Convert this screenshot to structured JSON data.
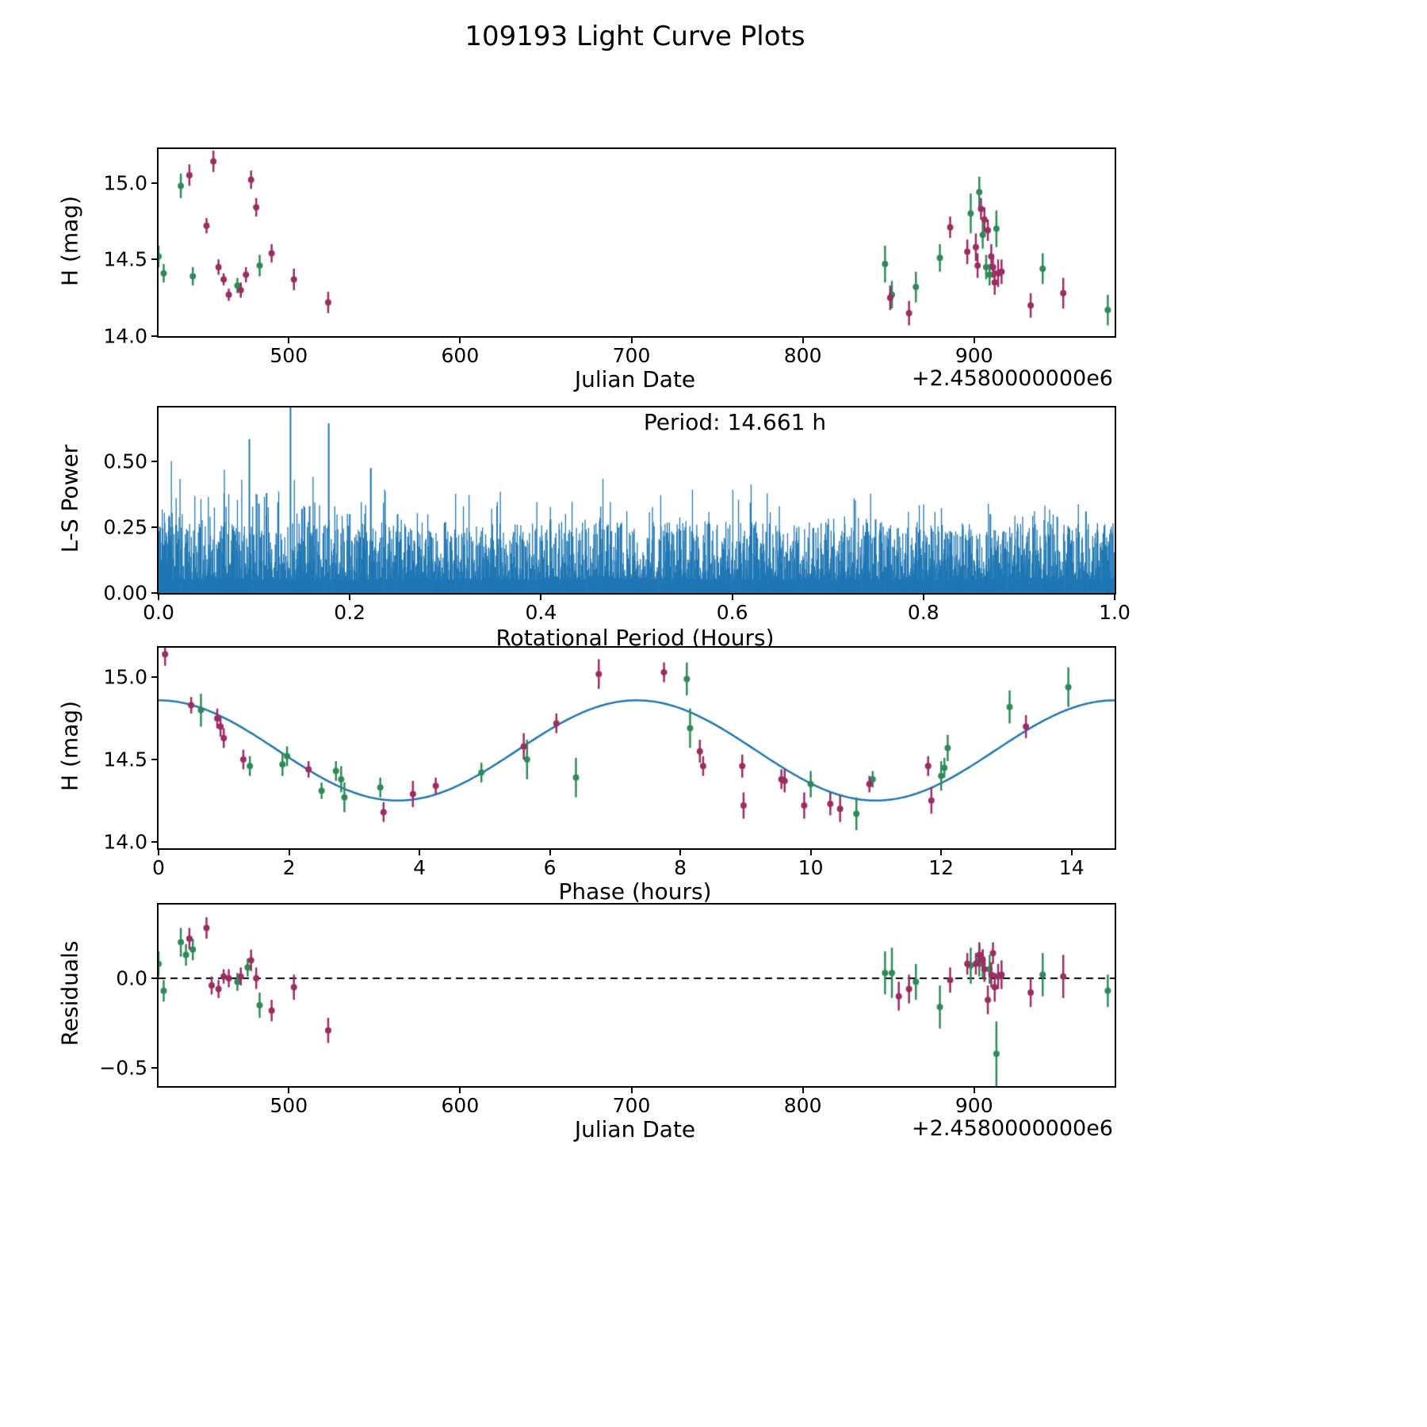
{
  "title": "109193 Light Curve Plots",
  "colors": {
    "green": "#2e8b57",
    "purple": "#9b2d62",
    "blue": "#1f77b4"
  },
  "chart_data": [
    {
      "id": "jd",
      "type": "scatter",
      "xlabel": "Julian Date",
      "ylabel": "H (mag)",
      "x_offset_label": "+2.4580000000e6",
      "xlim": [
        424,
        982
      ],
      "ylim": [
        14.0,
        15.22
      ],
      "xticks": [
        {
          "v": 500,
          "label": "500"
        },
        {
          "v": 600,
          "label": "600"
        },
        {
          "v": 700,
          "label": "700"
        },
        {
          "v": 800,
          "label": "800"
        },
        {
          "v": 900,
          "label": "900"
        }
      ],
      "yticks": [
        {
          "v": 15.0,
          "label": "15.0"
        },
        {
          "v": 14.5,
          "label": "14.5"
        },
        {
          "v": 14.0,
          "label": "14.0"
        }
      ],
      "series": [
        {
          "name": "filter-green",
          "color_key": "green",
          "points": [
            [
              424,
              14.52,
              0.07
            ],
            [
              427,
              14.41,
              0.06
            ],
            [
              437,
              14.98,
              0.08
            ],
            [
              444,
              14.39,
              0.06
            ],
            [
              470,
              14.33,
              0.05
            ],
            [
              483,
              14.46,
              0.07
            ],
            [
              848,
              14.47,
              0.12
            ],
            [
              852,
              14.27,
              0.09
            ],
            [
              866,
              14.32,
              0.1
            ],
            [
              880,
              14.51,
              0.09
            ],
            [
              898,
              14.8,
              0.13
            ],
            [
              903,
              14.94,
              0.1
            ],
            [
              905,
              14.66,
              0.09
            ],
            [
              907,
              14.45,
              0.08
            ],
            [
              909,
              14.4,
              0.07
            ],
            [
              913,
              14.7,
              0.12
            ],
            [
              940,
              14.44,
              0.1
            ],
            [
              978,
              14.17,
              0.1
            ]
          ]
        },
        {
          "name": "filter-purple",
          "color_key": "purple",
          "points": [
            [
              442,
              15.05,
              0.07
            ],
            [
              452,
              14.72,
              0.05
            ],
            [
              456,
              15.14,
              0.07
            ],
            [
              459,
              14.45,
              0.05
            ],
            [
              462,
              14.37,
              0.04
            ],
            [
              465,
              14.27,
              0.04
            ],
            [
              472,
              14.3,
              0.05
            ],
            [
              475,
              14.4,
              0.05
            ],
            [
              478,
              15.02,
              0.06
            ],
            [
              481,
              14.84,
              0.06
            ],
            [
              490,
              14.54,
              0.06
            ],
            [
              503,
              14.37,
              0.07
            ],
            [
              523,
              14.22,
              0.07
            ],
            [
              851,
              14.25,
              0.08
            ],
            [
              862,
              14.15,
              0.08
            ],
            [
              886,
              14.71,
              0.07
            ],
            [
              896,
              14.55,
              0.08
            ],
            [
              901,
              14.58,
              0.09
            ],
            [
              902,
              14.46,
              0.08
            ],
            [
              904,
              14.83,
              0.07
            ],
            [
              906,
              14.76,
              0.08
            ],
            [
              908,
              14.69,
              0.07
            ],
            [
              910,
              14.52,
              0.08
            ],
            [
              911,
              14.45,
              0.07
            ],
            [
              912,
              14.35,
              0.08
            ],
            [
              914,
              14.41,
              0.09
            ],
            [
              916,
              14.42,
              0.08
            ],
            [
              933,
              14.2,
              0.08
            ],
            [
              952,
              14.28,
              0.1
            ]
          ]
        }
      ]
    },
    {
      "id": "ls",
      "type": "periodogram",
      "xlabel": "Rotational Period (Hours)",
      "ylabel": "L-S Power",
      "annotation": "Period: 14.661 h",
      "period_hours": 14.661,
      "xlim": [
        0,
        1.0
      ],
      "ylim": [
        0,
        0.705
      ],
      "xticks": [
        {
          "v": 0.0,
          "label": "0.0"
        },
        {
          "v": 0.2,
          "label": "0.2"
        },
        {
          "v": 0.4,
          "label": "0.4"
        },
        {
          "v": 0.6,
          "label": "0.6"
        },
        {
          "v": 0.8,
          "label": "0.8"
        },
        {
          "v": 1.0,
          "label": "1.0"
        }
      ],
      "yticks": [
        {
          "v": 0.0,
          "label": "0.00"
        },
        {
          "v": 0.25,
          "label": "0.25"
        },
        {
          "v": 0.5,
          "label": "0.50"
        }
      ],
      "noise": {
        "seed": 11,
        "count": 2200,
        "base": 0.05,
        "spread": 0.22,
        "left_boost_until": 0.26
      },
      "peaks": [
        [
          0.095,
          0.585
        ],
        [
          0.105,
          0.34
        ],
        [
          0.113,
          0.38
        ],
        [
          0.125,
          0.345
        ],
        [
          0.138,
          0.72
        ],
        [
          0.15,
          0.32
        ],
        [
          0.158,
          0.33
        ],
        [
          0.178,
          0.645
        ],
        [
          0.2,
          0.3
        ],
        [
          0.222,
          0.475
        ],
        [
          0.25,
          0.3
        ],
        [
          0.3,
          0.27
        ],
        [
          0.41,
          0.28
        ],
        [
          0.47,
          0.26
        ],
        [
          0.62,
          0.27
        ],
        [
          0.7,
          0.26
        ],
        [
          0.75,
          0.28
        ],
        [
          0.87,
          0.3
        ],
        [
          0.94,
          0.29
        ],
        [
          0.97,
          0.31
        ]
      ]
    },
    {
      "id": "phase",
      "type": "scatter",
      "xlabel": "Phase (hours)",
      "ylabel": "H (mag)",
      "xlim": [
        0,
        14.66
      ],
      "ylim": [
        13.96,
        15.18
      ],
      "xticks": [
        {
          "v": 0,
          "label": "0"
        },
        {
          "v": 2,
          "label": "2"
        },
        {
          "v": 4,
          "label": "4"
        },
        {
          "v": 6,
          "label": "6"
        },
        {
          "v": 8,
          "label": "8"
        },
        {
          "v": 10,
          "label": "10"
        },
        {
          "v": 12,
          "label": "12"
        },
        {
          "v": 14,
          "label": "14"
        }
      ],
      "yticks": [
        {
          "v": 15.0,
          "label": "15.0"
        },
        {
          "v": 14.5,
          "label": "14.5"
        },
        {
          "v": 14.0,
          "label": "14.0"
        }
      ],
      "fit": {
        "model": "cosine",
        "mean": 14.555,
        "amplitude": 0.305,
        "period": 7.3305,
        "color_key": "blue"
      },
      "series": [
        {
          "name": "filter-green",
          "color_key": "green",
          "points": [
            [
              0.65,
              14.8,
              0.1
            ],
            [
              1.4,
              14.46,
              0.06
            ],
            [
              1.9,
              14.47,
              0.07
            ],
            [
              1.97,
              14.52,
              0.06
            ],
            [
              2.5,
              14.31,
              0.05
            ],
            [
              2.72,
              14.43,
              0.06
            ],
            [
              2.8,
              14.38,
              0.08
            ],
            [
              2.85,
              14.27,
              0.09
            ],
            [
              3.4,
              14.33,
              0.06
            ],
            [
              4.95,
              14.42,
              0.06
            ],
            [
              5.65,
              14.5,
              0.12
            ],
            [
              6.4,
              14.39,
              0.12
            ],
            [
              8.1,
              14.99,
              0.1
            ],
            [
              8.15,
              14.69,
              0.12
            ],
            [
              10.0,
              14.35,
              0.08
            ],
            [
              10.7,
              14.17,
              0.1
            ],
            [
              10.95,
              14.38,
              0.05
            ],
            [
              12.0,
              14.4,
              0.09
            ],
            [
              12.05,
              14.45,
              0.06
            ],
            [
              12.1,
              14.57,
              0.08
            ],
            [
              13.05,
              14.82,
              0.1
            ],
            [
              13.95,
              14.94,
              0.12
            ]
          ]
        },
        {
          "name": "filter-purple",
          "color_key": "purple",
          "points": [
            [
              0.1,
              15.14,
              0.07
            ],
            [
              0.5,
              14.83,
              0.05
            ],
            [
              0.9,
              14.75,
              0.06
            ],
            [
              0.95,
              14.7,
              0.06
            ],
            [
              1.0,
              14.63,
              0.06
            ],
            [
              1.3,
              14.5,
              0.06
            ],
            [
              2.3,
              14.44,
              0.05
            ],
            [
              3.45,
              14.18,
              0.06
            ],
            [
              3.9,
              14.29,
              0.08
            ],
            [
              4.25,
              14.34,
              0.05
            ],
            [
              5.6,
              14.58,
              0.08
            ],
            [
              6.1,
              14.72,
              0.06
            ],
            [
              6.75,
              15.02,
              0.09
            ],
            [
              7.75,
              15.03,
              0.06
            ],
            [
              8.3,
              14.55,
              0.07
            ],
            [
              8.35,
              14.46,
              0.06
            ],
            [
              8.95,
              14.46,
              0.07
            ],
            [
              8.97,
              14.22,
              0.08
            ],
            [
              9.55,
              14.38,
              0.06
            ],
            [
              9.6,
              14.37,
              0.07
            ],
            [
              9.9,
              14.22,
              0.08
            ],
            [
              10.3,
              14.23,
              0.07
            ],
            [
              10.45,
              14.2,
              0.08
            ],
            [
              10.9,
              14.35,
              0.05
            ],
            [
              11.8,
              14.46,
              0.06
            ],
            [
              11.85,
              14.25,
              0.08
            ],
            [
              13.3,
              14.7,
              0.07
            ]
          ]
        }
      ]
    },
    {
      "id": "resid",
      "type": "scatter",
      "xlabel": "Julian Date",
      "ylabel": "Residuals",
      "x_offset_label": "+2.4580000000e6",
      "hline": 0,
      "xlim": [
        424,
        982
      ],
      "ylim": [
        -0.6,
        0.41
      ],
      "xticks": [
        {
          "v": 500,
          "label": "500"
        },
        {
          "v": 600,
          "label": "600"
        },
        {
          "v": 700,
          "label": "700"
        },
        {
          "v": 800,
          "label": "800"
        },
        {
          "v": 900,
          "label": "900"
        }
      ],
      "yticks": [
        {
          "v": 0.0,
          "label": "0.0"
        },
        {
          "v": -0.5,
          "label": "−0.5"
        }
      ],
      "series": [
        {
          "name": "filter-green",
          "color_key": "green",
          "points": [
            [
              424,
              0.08,
              0.07
            ],
            [
              427,
              -0.07,
              0.06
            ],
            [
              437,
              0.2,
              0.08
            ],
            [
              440,
              0.13,
              0.06
            ],
            [
              444,
              0.16,
              0.06
            ],
            [
              470,
              -0.02,
              0.05
            ],
            [
              476,
              0.06,
              0.05
            ],
            [
              483,
              -0.15,
              0.07
            ],
            [
              848,
              0.03,
              0.12
            ],
            [
              852,
              0.03,
              0.14
            ],
            [
              866,
              -0.02,
              0.1
            ],
            [
              880,
              -0.16,
              0.12
            ],
            [
              898,
              0.07,
              0.1
            ],
            [
              903,
              0.1,
              0.09
            ],
            [
              905,
              0.08,
              0.08
            ],
            [
              909,
              0.05,
              0.08
            ],
            [
              913,
              -0.42,
              0.18
            ],
            [
              940,
              0.02,
              0.12
            ],
            [
              978,
              -0.07,
              0.09
            ]
          ]
        },
        {
          "name": "filter-purple",
          "color_key": "purple",
          "points": [
            [
              442,
              0.22,
              0.06
            ],
            [
              452,
              0.28,
              0.06
            ],
            [
              455,
              -0.04,
              0.05
            ],
            [
              459,
              -0.06,
              0.05
            ],
            [
              462,
              0.01,
              0.04
            ],
            [
              465,
              0.0,
              0.05
            ],
            [
              472,
              0.01,
              0.05
            ],
            [
              478,
              0.1,
              0.06
            ],
            [
              481,
              0.0,
              0.06
            ],
            [
              490,
              -0.18,
              0.06
            ],
            [
              503,
              -0.05,
              0.07
            ],
            [
              523,
              -0.29,
              0.07
            ],
            [
              856,
              -0.1,
              0.08
            ],
            [
              862,
              -0.06,
              0.08
            ],
            [
              886,
              -0.01,
              0.07
            ],
            [
              896,
              0.08,
              0.06
            ],
            [
              901,
              0.08,
              0.06
            ],
            [
              903,
              0.13,
              0.07
            ],
            [
              905,
              0.1,
              0.06
            ],
            [
              906,
              0.05,
              0.07
            ],
            [
              908,
              -0.12,
              0.08
            ],
            [
              910,
              0.02,
              0.07
            ],
            [
              911,
              0.14,
              0.06
            ],
            [
              912,
              -0.05,
              0.08
            ],
            [
              914,
              0.01,
              0.07
            ],
            [
              916,
              0.02,
              0.08
            ],
            [
              933,
              -0.08,
              0.08
            ],
            [
              952,
              0.01,
              0.12
            ]
          ]
        }
      ]
    }
  ]
}
